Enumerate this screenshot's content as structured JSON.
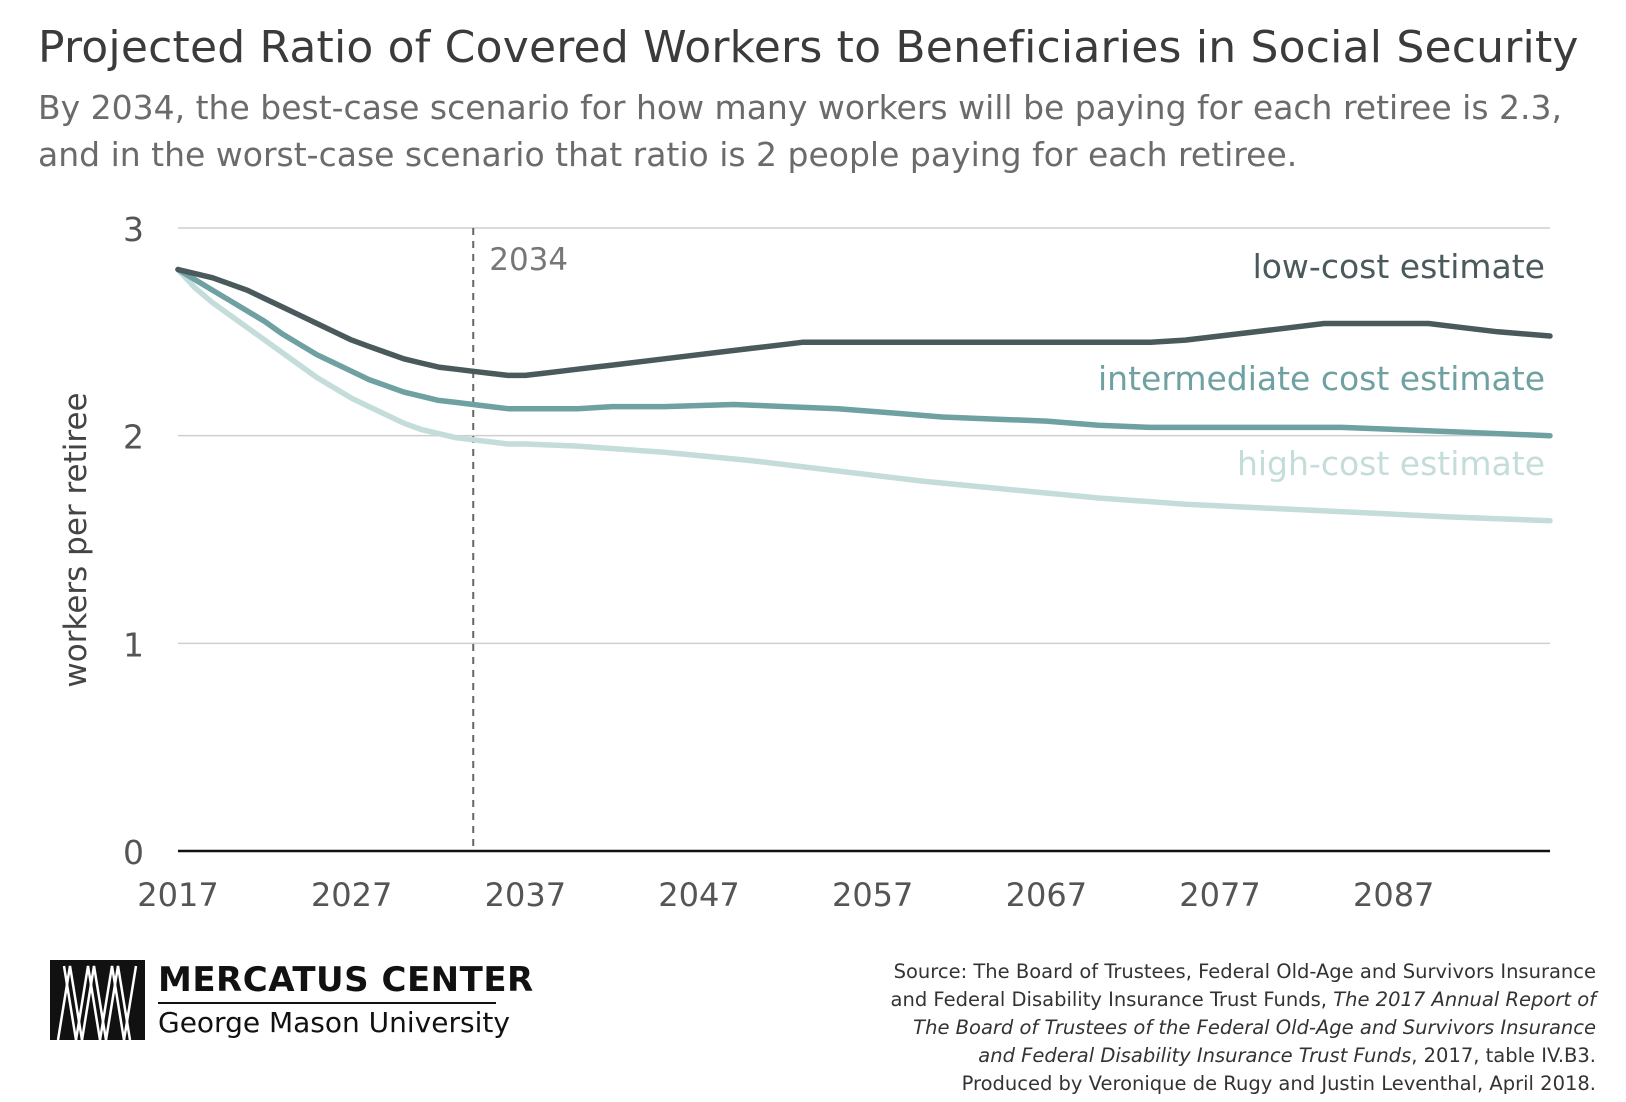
{
  "title": "Projected Ratio of Covered Workers to Beneficiaries in Social Security",
  "subtitle": "By 2034, the best-case scenario for how many workers will be paying for each retiree is 2.3, and in the worst-case scenario that ratio is 2 people paying for each retiree.",
  "chart_data": {
    "type": "line",
    "ylabel": "workers per retiree",
    "xlabel": "",
    "ylim": [
      0,
      3
    ],
    "xlim": [
      2017,
      2096
    ],
    "y_ticks": [
      "0",
      "1",
      "2",
      "3"
    ],
    "x_ticks": [
      "2017",
      "2027",
      "2037",
      "2047",
      "2057",
      "2067",
      "2077",
      "2087"
    ],
    "grid": "horizontal",
    "annotation": {
      "x": 2034,
      "label": "2034"
    },
    "series": [
      {
        "name": "low-cost estimate",
        "color": "#4a5a5c",
        "x": [
          2017,
          2018,
          2019,
          2020,
          2021,
          2022,
          2023,
          2024,
          2025,
          2026,
          2027,
          2028,
          2029,
          2030,
          2031,
          2032,
          2033,
          2034,
          2035,
          2036,
          2037,
          2038,
          2039,
          2040,
          2041,
          2042,
          2045,
          2050,
          2052,
          2053,
          2060,
          2070,
          2073,
          2075,
          2077,
          2080,
          2083,
          2086,
          2089,
          2091,
          2093,
          2096
        ],
        "y": [
          2.8,
          2.78,
          2.76,
          2.73,
          2.7,
          2.66,
          2.62,
          2.58,
          2.54,
          2.5,
          2.46,
          2.43,
          2.4,
          2.37,
          2.35,
          2.33,
          2.32,
          2.31,
          2.3,
          2.29,
          2.29,
          2.3,
          2.31,
          2.32,
          2.33,
          2.34,
          2.37,
          2.42,
          2.44,
          2.45,
          2.45,
          2.45,
          2.45,
          2.46,
          2.48,
          2.51,
          2.54,
          2.54,
          2.54,
          2.52,
          2.5,
          2.48
        ]
      },
      {
        "name": "intermediate cost estimate",
        "color": "#6fa0a2",
        "x": [
          2017,
          2018,
          2019,
          2020,
          2021,
          2022,
          2023,
          2024,
          2025,
          2026,
          2027,
          2028,
          2029,
          2030,
          2031,
          2032,
          2033,
          2034,
          2035,
          2036,
          2037,
          2040,
          2042,
          2045,
          2049,
          2052,
          2055,
          2058,
          2061,
          2064,
          2067,
          2070,
          2073,
          2076,
          2080,
          2084,
          2087,
          2090,
          2093,
          2096
        ],
        "y": [
          2.8,
          2.75,
          2.7,
          2.65,
          2.6,
          2.55,
          2.49,
          2.44,
          2.39,
          2.35,
          2.31,
          2.27,
          2.24,
          2.21,
          2.19,
          2.17,
          2.16,
          2.15,
          2.14,
          2.13,
          2.13,
          2.13,
          2.14,
          2.14,
          2.15,
          2.14,
          2.13,
          2.11,
          2.09,
          2.08,
          2.07,
          2.05,
          2.04,
          2.04,
          2.04,
          2.04,
          2.03,
          2.02,
          2.01,
          2.0
        ]
      },
      {
        "name": "high-cost estimate",
        "color": "#c4dcda",
        "x": [
          2017,
          2018,
          2019,
          2020,
          2021,
          2022,
          2023,
          2024,
          2025,
          2026,
          2027,
          2028,
          2029,
          2030,
          2031,
          2032,
          2033,
          2034,
          2035,
          2036,
          2037,
          2040,
          2045,
          2050,
          2055,
          2060,
          2065,
          2070,
          2075,
          2080,
          2085,
          2090,
          2093,
          2096
        ],
        "y": [
          2.8,
          2.71,
          2.64,
          2.58,
          2.52,
          2.46,
          2.4,
          2.34,
          2.28,
          2.23,
          2.18,
          2.14,
          2.1,
          2.06,
          2.03,
          2.01,
          1.99,
          1.98,
          1.97,
          1.96,
          1.96,
          1.95,
          1.92,
          1.88,
          1.83,
          1.78,
          1.74,
          1.7,
          1.67,
          1.65,
          1.63,
          1.61,
          1.6,
          1.59
        ]
      }
    ]
  },
  "logo": {
    "name": "MERCATUS CENTER",
    "sub": "George Mason University"
  },
  "source": {
    "line1": "Source: The Board of Trustees, Federal Old-Age and Survivors Insurance",
    "line2_plain": "and Federal Disability Insurance Trust Funds, ",
    "line2_italic": "The 2017 Annual Report of",
    "line3_italic": "The Board of Trustees of the Federal Old-Age and Survivors Insurance",
    "line4_italic": "and Federal Disability Insurance Trust Funds",
    "line4_plain": ", 2017, table IV.B3.",
    "line5": "Produced by Veronique de Rugy and Justin Leventhal, April 2018."
  }
}
